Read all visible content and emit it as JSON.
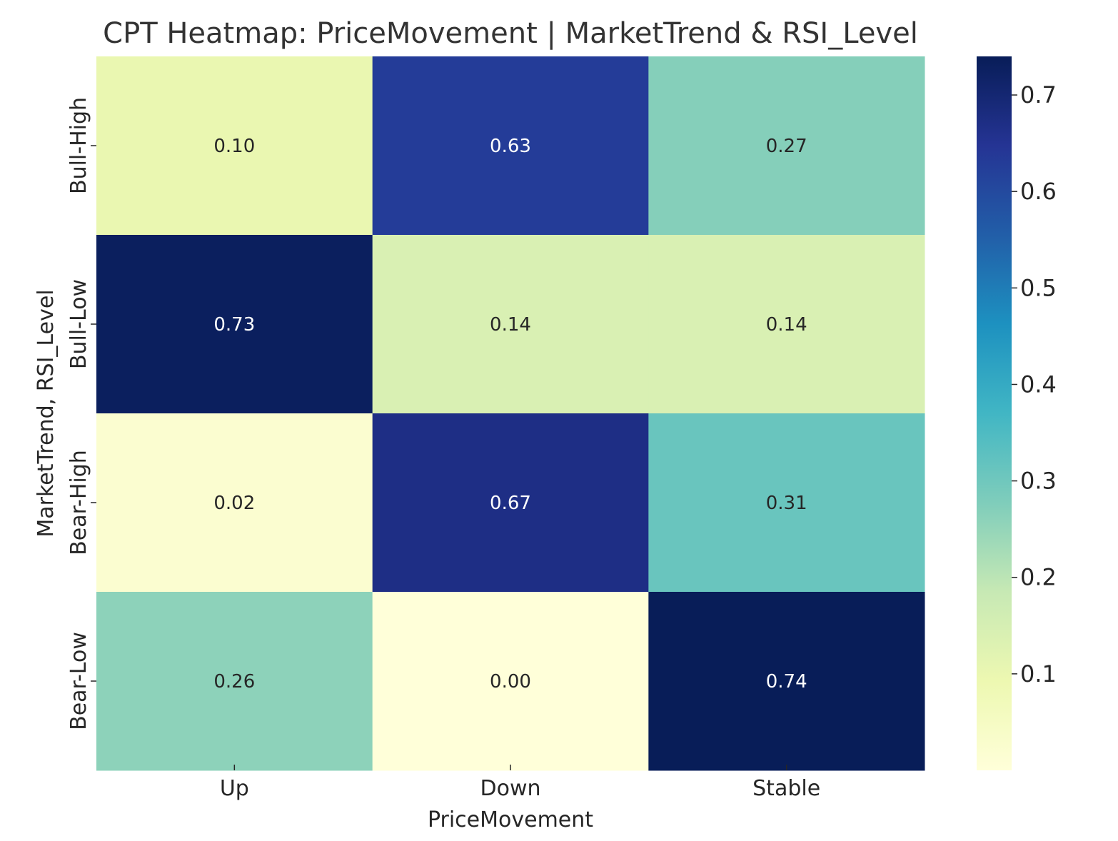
{
  "chart_data": {
    "type": "heatmap",
    "title": "CPT Heatmap: PriceMovement | MarketTrend & RSI_Level",
    "xlabel": "PriceMovement",
    "ylabel": "MarketTrend, RSI_Level",
    "x_categories": [
      "Up",
      "Down",
      "Stable"
    ],
    "y_categories": [
      "Bull-High",
      "Bull-Low",
      "Bear-High",
      "Bear-Low"
    ],
    "values": [
      [
        0.1,
        0.63,
        0.27
      ],
      [
        0.73,
        0.14,
        0.14
      ],
      [
        0.02,
        0.67,
        0.31
      ],
      [
        0.26,
        0.0,
        0.74
      ]
    ],
    "value_format": "2 decimals",
    "colormap": "YlGnBu",
    "colorbar": {
      "range": [
        0.0,
        0.74
      ],
      "ticks": [
        0.1,
        0.2,
        0.3,
        0.4,
        0.5,
        0.6,
        0.7
      ],
      "tick_labels": [
        "0.1",
        "0.2",
        "0.3",
        "0.4",
        "0.5",
        "0.6",
        "0.7"
      ]
    },
    "colors": {
      "text_dark": "#262626",
      "text_light": "#ffffff",
      "title": "#333333"
    }
  }
}
